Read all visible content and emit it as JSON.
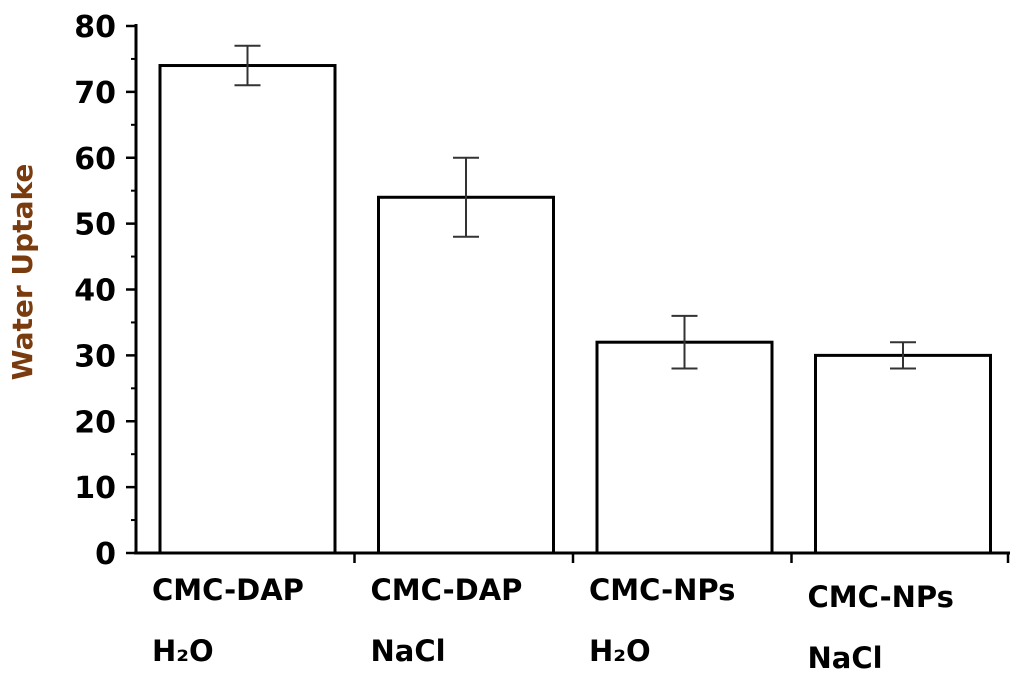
{
  "chart_data": {
    "type": "bar",
    "title": "",
    "xlabel": "",
    "ylabel": "Water Uptake",
    "ylabel_color": "#7a3b0f",
    "ylim": [
      0,
      80
    ],
    "yticks": [
      0,
      10,
      20,
      30,
      40,
      50,
      60,
      70,
      80
    ],
    "ytick_labels": [
      "0",
      "10",
      "20",
      "30",
      "40",
      "50",
      "60",
      "70",
      "80"
    ],
    "categories": [
      {
        "line1": "CMC-DAP",
        "line2": "H₂O"
      },
      {
        "line1": "CMC-DAP",
        "line2": "NaCl"
      },
      {
        "line1": "CMC-NPs",
        "line2": "H₂O"
      },
      {
        "line1": "CMC-NPs",
        "line2": "NaCl"
      }
    ],
    "values": [
      74,
      54,
      32,
      30
    ],
    "error_low": [
      71,
      48,
      28,
      28
    ],
    "error_high": [
      77,
      60,
      36,
      32
    ],
    "bar_fill": "#ffffff",
    "bar_stroke": "#000000",
    "grid": false,
    "legend": "none"
  }
}
